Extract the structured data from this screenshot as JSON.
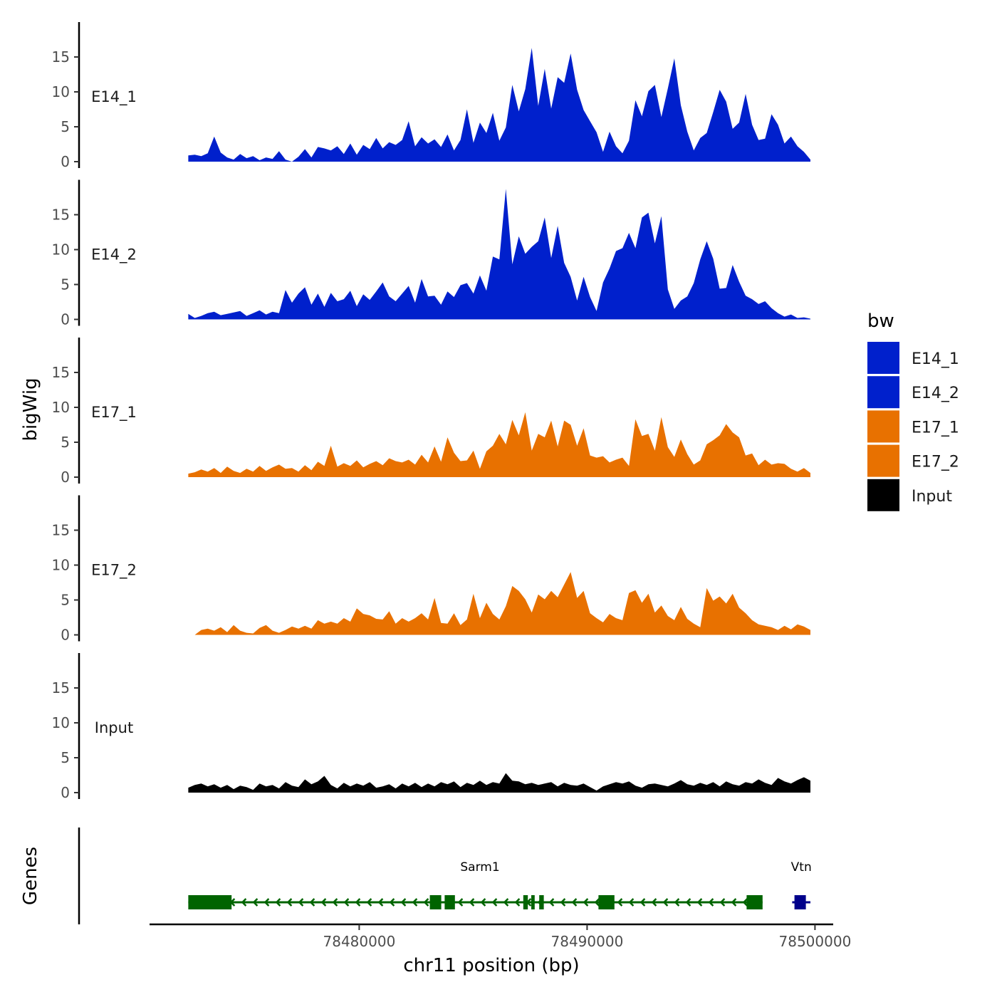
{
  "chart_data": {
    "type": "area",
    "chromosome": "chr11",
    "xlabel": "chr11 position (bp)",
    "ylabel": "bigWig",
    "genes_label": "Genes",
    "xlim": [
      78470800,
      78500800
    ],
    "region": [
      78472500,
      78499800
    ],
    "ylim": [
      0,
      20
    ],
    "yticks": [
      "0",
      "5",
      "10",
      "15"
    ],
    "xticks": [
      {
        "value": 78480000,
        "label": "78480000"
      },
      {
        "value": 78490000,
        "label": "78490000"
      },
      {
        "value": 78500000,
        "label": "78500000"
      }
    ],
    "legend": {
      "title": "bw",
      "entries": [
        {
          "label": "E14_1",
          "color": "#0020CC"
        },
        {
          "label": "E14_2",
          "color": "#0020CC"
        },
        {
          "label": "E17_1",
          "color": "#E87100"
        },
        {
          "label": "E17_2",
          "color": "#E87100"
        },
        {
          "label": "Input",
          "color": "#000000"
        }
      ]
    },
    "series": [
      {
        "name": "E14_1",
        "color": "#0020CC",
        "values": [
          0.9,
          1.0,
          0.8,
          1.2,
          3.6,
          1.3,
          0.6,
          0.3,
          1.1,
          0.5,
          0.8,
          0.2,
          0.6,
          0.4,
          1.5,
          0.3,
          0,
          0.7,
          1.8,
          0.6,
          2.1,
          1.9,
          1.6,
          2.2,
          1.1,
          2.6,
          1.0,
          2.4,
          1.8,
          3.4,
          1.9,
          2.8,
          2.4,
          3.1,
          5.8,
          2.2,
          3.5,
          2.6,
          3.2,
          2.1,
          3.9,
          1.6,
          3.1,
          7.5,
          2.7,
          5.6,
          4.1,
          7.0,
          3.0,
          4.9,
          11.0,
          7.2,
          10.4,
          16.3,
          8.0,
          13.3,
          7.6,
          12.1,
          11.3,
          15.5,
          10.3,
          7.4,
          5.8,
          4.2,
          1.4,
          4.3,
          2.2,
          1.2,
          3.0,
          8.8,
          6.5,
          10.1,
          11.0,
          6.4,
          10.5,
          14.8,
          8.1,
          4.3,
          1.6,
          3.4,
          4.1,
          7.1,
          10.3,
          8.6,
          4.7,
          5.6,
          9.7,
          5.3,
          3.1,
          3.3,
          6.8,
          5.3,
          2.6,
          3.6,
          2.2,
          1.4,
          0.3
        ]
      },
      {
        "name": "E14_2",
        "color": "#0020CC",
        "values": [
          0.8,
          0.2,
          0.5,
          0.9,
          1.1,
          0.6,
          0.8,
          1.0,
          1.2,
          0.5,
          0.9,
          1.3,
          0.7,
          1.1,
          0.9,
          4.2,
          2.4,
          3.7,
          4.6,
          2.1,
          3.7,
          1.8,
          3.8,
          2.6,
          2.9,
          4.1,
          1.9,
          3.6,
          2.8,
          4.0,
          5.3,
          3.3,
          2.6,
          3.7,
          4.8,
          2.4,
          5.8,
          3.3,
          3.4,
          2.1,
          4.0,
          3.2,
          4.9,
          5.2,
          3.7,
          6.3,
          4.1,
          9.0,
          8.6,
          18.7,
          7.9,
          11.9,
          9.4,
          10.4,
          11.2,
          14.6,
          8.8,
          13.4,
          8.1,
          6.1,
          2.7,
          6.1,
          3.2,
          1.2,
          5.3,
          7.3,
          9.8,
          10.2,
          12.4,
          10.2,
          14.6,
          15.3,
          10.9,
          14.8,
          4.3,
          1.5,
          2.7,
          3.3,
          5.2,
          8.6,
          11.2,
          8.7,
          4.4,
          4.5,
          7.8,
          5.4,
          3.4,
          2.9,
          2.2,
          2.6,
          1.6,
          0.9,
          0.4,
          0.7,
          0.2,
          0.3,
          0.1
        ]
      },
      {
        "name": "E17_1",
        "color": "#E87100",
        "values": [
          0.5,
          0.7,
          1.1,
          0.8,
          1.3,
          0.6,
          1.5,
          0.9,
          0.6,
          1.2,
          0.8,
          1.6,
          0.9,
          1.4,
          1.8,
          1.2,
          1.3,
          0.8,
          1.7,
          1.0,
          2.2,
          1.6,
          4.5,
          1.5,
          2.0,
          1.6,
          2.4,
          1.4,
          1.9,
          2.3,
          1.7,
          2.7,
          2.3,
          2.1,
          2.5,
          1.8,
          3.2,
          2.1,
          4.4,
          2.2,
          5.7,
          3.5,
          2.3,
          2.4,
          3.8,
          1.2,
          3.7,
          4.5,
          6.2,
          4.7,
          8.2,
          6.0,
          9.3,
          3.8,
          6.2,
          5.7,
          8.1,
          4.4,
          8.1,
          7.5,
          4.5,
          7.0,
          3.1,
          2.8,
          3.0,
          2.1,
          2.5,
          2.8,
          1.6,
          8.3,
          5.9,
          6.2,
          3.8,
          8.6,
          4.3,
          2.9,
          5.4,
          3.3,
          1.8,
          2.4,
          4.7,
          5.3,
          6.0,
          7.6,
          6.4,
          5.7,
          3.1,
          3.4,
          1.7,
          2.5,
          1.8,
          2.0,
          1.9,
          1.2,
          0.8,
          1.3,
          0.6
        ]
      },
      {
        "name": "E17_2",
        "color": "#E87100",
        "values": [
          0,
          0,
          0.7,
          0.9,
          0.6,
          1.1,
          0.4,
          1.4,
          0.6,
          0.3,
          0.2,
          1.0,
          1.4,
          0.6,
          0.3,
          0.7,
          1.2,
          0.9,
          1.3,
          0.9,
          2.1,
          1.6,
          1.9,
          1.6,
          2.4,
          1.9,
          3.8,
          3.0,
          2.8,
          2.3,
          2.2,
          3.4,
          1.6,
          2.4,
          1.9,
          2.4,
          3.1,
          2.2,
          5.3,
          1.7,
          1.6,
          3.1,
          1.4,
          2.2,
          5.9,
          2.4,
          4.6,
          3.0,
          2.2,
          4.1,
          7.0,
          6.3,
          5.1,
          3.2,
          5.8,
          5.1,
          6.3,
          5.4,
          7.2,
          9.0,
          5.3,
          6.3,
          3.1,
          2.4,
          1.8,
          3.0,
          2.4,
          2.1,
          6.0,
          6.4,
          4.6,
          5.9,
          3.2,
          4.2,
          2.7,
          2.1,
          4.0,
          2.3,
          1.6,
          1.1,
          6.7,
          4.9,
          5.5,
          4.5,
          5.9,
          3.9,
          3.1,
          2.1,
          1.5,
          1.3,
          1.1,
          0.7,
          1.3,
          0.8,
          1.5,
          1.2,
          0.7
        ]
      },
      {
        "name": "Input",
        "color": "#000000",
        "values": [
          0.7,
          1.1,
          1.3,
          0.9,
          1.2,
          0.7,
          1.1,
          0.5,
          1.0,
          0.8,
          0.4,
          1.3,
          0.9,
          1.1,
          0.6,
          1.5,
          1.0,
          0.8,
          1.9,
          1.2,
          1.6,
          2.4,
          1.1,
          0.6,
          1.4,
          0.9,
          1.3,
          1.0,
          1.5,
          0.7,
          0.9,
          1.2,
          0.6,
          1.3,
          0.9,
          1.4,
          0.8,
          1.3,
          0.9,
          1.5,
          1.2,
          1.6,
          0.8,
          1.4,
          1.1,
          1.7,
          1.1,
          1.5,
          1.3,
          2.8,
          1.7,
          1.6,
          1.2,
          1.4,
          1.1,
          1.3,
          1.5,
          0.9,
          1.4,
          1.1,
          1.0,
          1.3,
          0.8,
          0.3,
          0.9,
          1.2,
          1.5,
          1.3,
          1.6,
          1.0,
          0.7,
          1.2,
          1.3,
          1.1,
          0.9,
          1.3,
          1.8,
          1.2,
          1.0,
          1.4,
          1.1,
          1.5,
          0.9,
          1.6,
          1.2,
          1.0,
          1.5,
          1.3,
          1.9,
          1.4,
          1.1,
          2.1,
          1.6,
          1.3,
          1.8,
          2.2,
          1.7
        ]
      }
    ],
    "genes": [
      {
        "name": "Sarm1",
        "strand": "-",
        "start": 78472500,
        "end": 78497700,
        "color": "#006400",
        "label_pos": 78485300,
        "exons": [
          [
            78472500,
            78473300
          ],
          [
            78473300,
            78474400
          ],
          [
            78483100,
            78483600
          ],
          [
            78483750,
            78484200
          ],
          [
            78487200,
            78487400
          ],
          [
            78487550,
            78487700
          ],
          [
            78487900,
            78488100
          ],
          [
            78490500,
            78491200
          ],
          [
            78497000,
            78497700
          ]
        ]
      },
      {
        "name": "Vtn",
        "strand": "+",
        "start": 78499000,
        "end": 78499800,
        "color": "#00008B",
        "label_pos": 78499400,
        "exons": [
          [
            78499100,
            78499600
          ]
        ]
      }
    ]
  }
}
